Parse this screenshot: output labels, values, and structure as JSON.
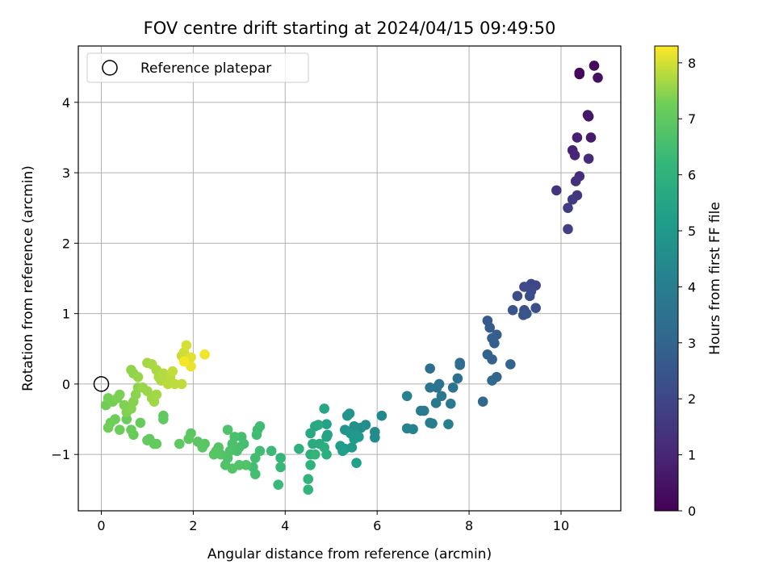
{
  "chart_data": {
    "type": "scatter",
    "title": "FOV centre drift starting at 2024/04/15 09:49:50",
    "xlabel": "Angular distance from reference (arcmin)",
    "ylabel": "Rotation from reference (arcmin)",
    "xlim": [
      -0.5,
      11.3
    ],
    "ylim": [
      -1.8,
      4.8
    ],
    "xticks": [
      0,
      2,
      4,
      6,
      8,
      10
    ],
    "yticks": [
      -1,
      0,
      1,
      2,
      3,
      4
    ],
    "grid": true,
    "legend": {
      "position": "top-left",
      "label": "Reference platepar"
    },
    "reference_point": {
      "x": 0,
      "y": 0
    },
    "colorbar": {
      "label": "Hours from first FF file",
      "range": [
        0,
        8.3
      ],
      "ticks": [
        0,
        1,
        2,
        3,
        4,
        5,
        6,
        7,
        8
      ],
      "colormap": "viridis"
    },
    "points": [
      [
        10.4,
        4.4,
        0.1
      ],
      [
        10.4,
        4.42,
        0.2
      ],
      [
        10.72,
        4.52,
        0.3
      ],
      [
        10.8,
        4.35,
        0.4
      ],
      [
        10.6,
        3.8,
        0.5
      ],
      [
        10.58,
        3.82,
        0.6
      ],
      [
        10.65,
        3.5,
        0.7
      ],
      [
        10.35,
        3.5,
        0.8
      ],
      [
        10.25,
        3.32,
        0.9
      ],
      [
        10.3,
        3.25,
        1.0
      ],
      [
        10.6,
        3.2,
        1.1
      ],
      [
        10.4,
        2.95,
        1.2
      ],
      [
        10.32,
        2.88,
        1.3
      ],
      [
        9.9,
        2.75,
        1.4
      ],
      [
        10.35,
        2.68,
        1.5
      ],
      [
        10.25,
        2.62,
        1.6
      ],
      [
        10.15,
        2.5,
        1.7
      ],
      [
        10.15,
        2.2,
        1.8
      ],
      [
        9.35,
        1.42,
        2.0
      ],
      [
        9.45,
        1.4,
        2.05
      ],
      [
        9.2,
        1.38,
        2.1
      ],
      [
        9.35,
        1.32,
        2.15
      ],
      [
        9.05,
        1.25,
        2.2
      ],
      [
        9.32,
        1.25,
        2.25
      ],
      [
        9.45,
        1.08,
        2.3
      ],
      [
        9.2,
        1.05,
        2.35
      ],
      [
        8.95,
        1.05,
        2.4
      ],
      [
        9.25,
        1.0,
        2.45
      ],
      [
        9.18,
        0.98,
        2.5
      ],
      [
        8.4,
        0.9,
        2.6
      ],
      [
        8.45,
        0.8,
        2.7
      ],
      [
        8.6,
        0.7,
        2.75
      ],
      [
        8.5,
        0.65,
        2.8
      ],
      [
        8.55,
        0.58,
        2.85
      ],
      [
        8.4,
        0.42,
        2.9
      ],
      [
        8.5,
        0.35,
        2.95
      ],
      [
        8.9,
        0.28,
        3.0
      ],
      [
        8.6,
        0.1,
        3.05
      ],
      [
        8.5,
        0.05,
        3.1
      ],
      [
        8.3,
        -0.25,
        3.15
      ],
      [
        7.8,
        0.3,
        3.3
      ],
      [
        7.8,
        0.27,
        3.35
      ],
      [
        7.15,
        0.22,
        3.4
      ],
      [
        7.75,
        0.08,
        3.45
      ],
      [
        7.35,
        0.0,
        3.5
      ],
      [
        7.3,
        -0.05,
        3.55
      ],
      [
        7.65,
        -0.05,
        3.6
      ],
      [
        7.15,
        -0.05,
        3.65
      ],
      [
        7.4,
        -0.17,
        3.7
      ],
      [
        7.28,
        -0.27,
        3.75
      ],
      [
        7.6,
        -0.28,
        3.8
      ],
      [
        6.95,
        -0.38,
        3.85
      ],
      [
        7.02,
        -0.38,
        3.9
      ],
      [
        7.15,
        -0.55,
        3.95
      ],
      [
        7.2,
        -0.56,
        4.0
      ],
      [
        7.55,
        -0.57,
        4.05
      ],
      [
        6.65,
        -0.17,
        4.1
      ],
      [
        6.65,
        -0.63,
        4.15
      ],
      [
        6.78,
        -0.64,
        4.2
      ],
      [
        6.1,
        -0.45,
        4.4
      ],
      [
        5.95,
        -0.68,
        4.45
      ],
      [
        5.95,
        -0.76,
        4.5
      ],
      [
        5.75,
        -0.58,
        4.55
      ],
      [
        5.65,
        -0.62,
        4.6
      ],
      [
        5.55,
        -0.62,
        4.65
      ],
      [
        5.5,
        -0.6,
        4.7
      ],
      [
        5.4,
        -0.42,
        4.75
      ],
      [
        5.35,
        -0.45,
        4.8
      ],
      [
        5.3,
        -0.65,
        4.85
      ],
      [
        5.42,
        -0.7,
        4.9
      ],
      [
        5.55,
        -0.72,
        4.95
      ],
      [
        5.6,
        -0.75,
        5.0
      ],
      [
        5.5,
        -0.78,
        5.05
      ],
      [
        5.45,
        -0.9,
        5.1
      ],
      [
        5.3,
        -0.92,
        5.15
      ],
      [
        5.2,
        -0.88,
        5.2
      ],
      [
        5.25,
        -0.95,
        5.25
      ],
      [
        5.55,
        -1.12,
        5.3
      ],
      [
        4.9,
        -0.57,
        5.35
      ],
      [
        4.92,
        -0.72,
        5.4
      ],
      [
        4.9,
        -0.75,
        5.45
      ],
      [
        4.85,
        -0.35,
        5.5
      ],
      [
        4.65,
        -0.6,
        5.55
      ],
      [
        4.72,
        -0.58,
        5.6
      ],
      [
        4.55,
        -0.7,
        5.65
      ],
      [
        4.6,
        -0.85,
        5.7
      ],
      [
        4.75,
        -0.85,
        5.75
      ],
      [
        4.85,
        -0.9,
        5.8
      ],
      [
        4.9,
        -1.0,
        5.85
      ],
      [
        4.55,
        -1.0,
        5.9
      ],
      [
        4.3,
        -0.92,
        5.95
      ],
      [
        4.55,
        -1.15,
        6.0
      ],
      [
        4.5,
        -1.35,
        6.05
      ],
      [
        4.5,
        -1.5,
        6.1
      ],
      [
        4.65,
        -1.0,
        6.15
      ],
      [
        3.9,
        -1.05,
        6.2
      ],
      [
        3.9,
        -1.18,
        6.25
      ],
      [
        3.85,
        -1.43,
        6.3
      ],
      [
        3.7,
        -0.95,
        6.35
      ],
      [
        3.45,
        -0.6,
        6.4
      ],
      [
        3.4,
        -0.65,
        6.42
      ],
      [
        3.38,
        -0.72,
        6.44
      ],
      [
        3.45,
        -0.95,
        6.46
      ],
      [
        3.35,
        -1.05,
        6.48
      ],
      [
        3.3,
        -1.18,
        6.5
      ],
      [
        3.35,
        -1.28,
        6.52
      ],
      [
        3.1,
        -0.85,
        6.54
      ],
      [
        3.05,
        -0.75,
        6.56
      ],
      [
        3.0,
        -0.9,
        6.58
      ],
      [
        2.95,
        -0.95,
        6.6
      ],
      [
        2.9,
        -0.75,
        6.62
      ],
      [
        2.85,
        -0.85,
        6.64
      ],
      [
        2.8,
        -0.95,
        6.66
      ],
      [
        2.75,
        -1.05,
        6.68
      ],
      [
        2.7,
        -1.15,
        6.7
      ],
      [
        2.75,
        -0.65,
        6.72
      ],
      [
        3.15,
        -1.15,
        6.74
      ],
      [
        3.0,
        -1.15,
        6.76
      ],
      [
        2.85,
        -1.2,
        6.78
      ],
      [
        2.6,
        -1.0,
        6.8
      ],
      [
        2.55,
        -0.9,
        6.82
      ],
      [
        2.5,
        -0.95,
        6.84
      ],
      [
        2.45,
        -1.0,
        6.86
      ],
      [
        2.25,
        -0.85,
        6.88
      ],
      [
        2.2,
        -0.9,
        6.9
      ],
      [
        2.1,
        -0.82,
        6.92
      ],
      [
        1.95,
        -0.7,
        6.94
      ],
      [
        1.9,
        -0.78,
        6.96
      ],
      [
        1.7,
        -0.85,
        6.98
      ],
      [
        1.35,
        -0.45,
        7.0
      ],
      [
        1.35,
        -0.5,
        7.02
      ],
      [
        1.2,
        -0.85,
        7.04
      ],
      [
        1.15,
        -0.85,
        7.06
      ],
      [
        1.05,
        -0.78,
        7.08
      ],
      [
        1.0,
        -0.8,
        7.1
      ],
      [
        0.85,
        -0.55,
        7.12
      ],
      [
        0.7,
        -0.72,
        7.14
      ],
      [
        0.65,
        -0.65,
        7.16
      ],
      [
        0.55,
        -0.5,
        7.18
      ],
      [
        0.4,
        -0.65,
        7.2
      ],
      [
        0.3,
        -0.5,
        7.22
      ],
      [
        0.2,
        -0.55,
        7.24
      ],
      [
        0.15,
        -0.62,
        7.26
      ],
      [
        0.1,
        -0.3,
        7.28
      ],
      [
        0.15,
        -0.2,
        7.3
      ],
      [
        0.25,
        -0.25,
        7.32
      ],
      [
        0.35,
        -0.2,
        7.34
      ],
      [
        0.4,
        -0.15,
        7.36
      ],
      [
        0.5,
        -0.3,
        7.38
      ],
      [
        0.55,
        -0.4,
        7.4
      ],
      [
        0.65,
        -0.35,
        7.42
      ],
      [
        0.7,
        -0.25,
        7.44
      ],
      [
        0.75,
        -0.15,
        7.46
      ],
      [
        0.8,
        -0.05,
        7.48
      ],
      [
        0.65,
        0.2,
        7.5
      ],
      [
        0.7,
        0.15,
        7.52
      ],
      [
        0.8,
        0.1,
        7.54
      ],
      [
        0.9,
        -0.05,
        7.56
      ],
      [
        1.0,
        -0.1,
        7.58
      ],
      [
        1.1,
        -0.2,
        7.6
      ],
      [
        1.15,
        -0.25,
        7.62
      ],
      [
        1.2,
        -0.15,
        7.64
      ],
      [
        1.0,
        0.3,
        7.66
      ],
      [
        1.1,
        0.28,
        7.68
      ],
      [
        1.2,
        0.2,
        7.7
      ],
      [
        1.25,
        0.1,
        7.72
      ],
      [
        1.3,
        0.05,
        7.74
      ],
      [
        1.35,
        0.15,
        7.76
      ],
      [
        1.4,
        0.05,
        7.78
      ],
      [
        1.5,
        0.1,
        7.8
      ],
      [
        1.45,
        0.0,
        7.82
      ],
      [
        1.6,
        0.0,
        7.84
      ],
      [
        1.75,
        0.0,
        7.86
      ],
      [
        1.55,
        0.18,
        7.88
      ],
      [
        1.75,
        0.4,
        7.9
      ],
      [
        1.8,
        0.45,
        7.95
      ],
      [
        1.85,
        0.55,
        8.0
      ],
      [
        1.9,
        0.35,
        8.05
      ],
      [
        1.95,
        0.38,
        8.1
      ],
      [
        1.95,
        0.25,
        8.15
      ],
      [
        2.25,
        0.42,
        8.2
      ],
      [
        1.8,
        0.32,
        8.25
      ]
    ]
  }
}
